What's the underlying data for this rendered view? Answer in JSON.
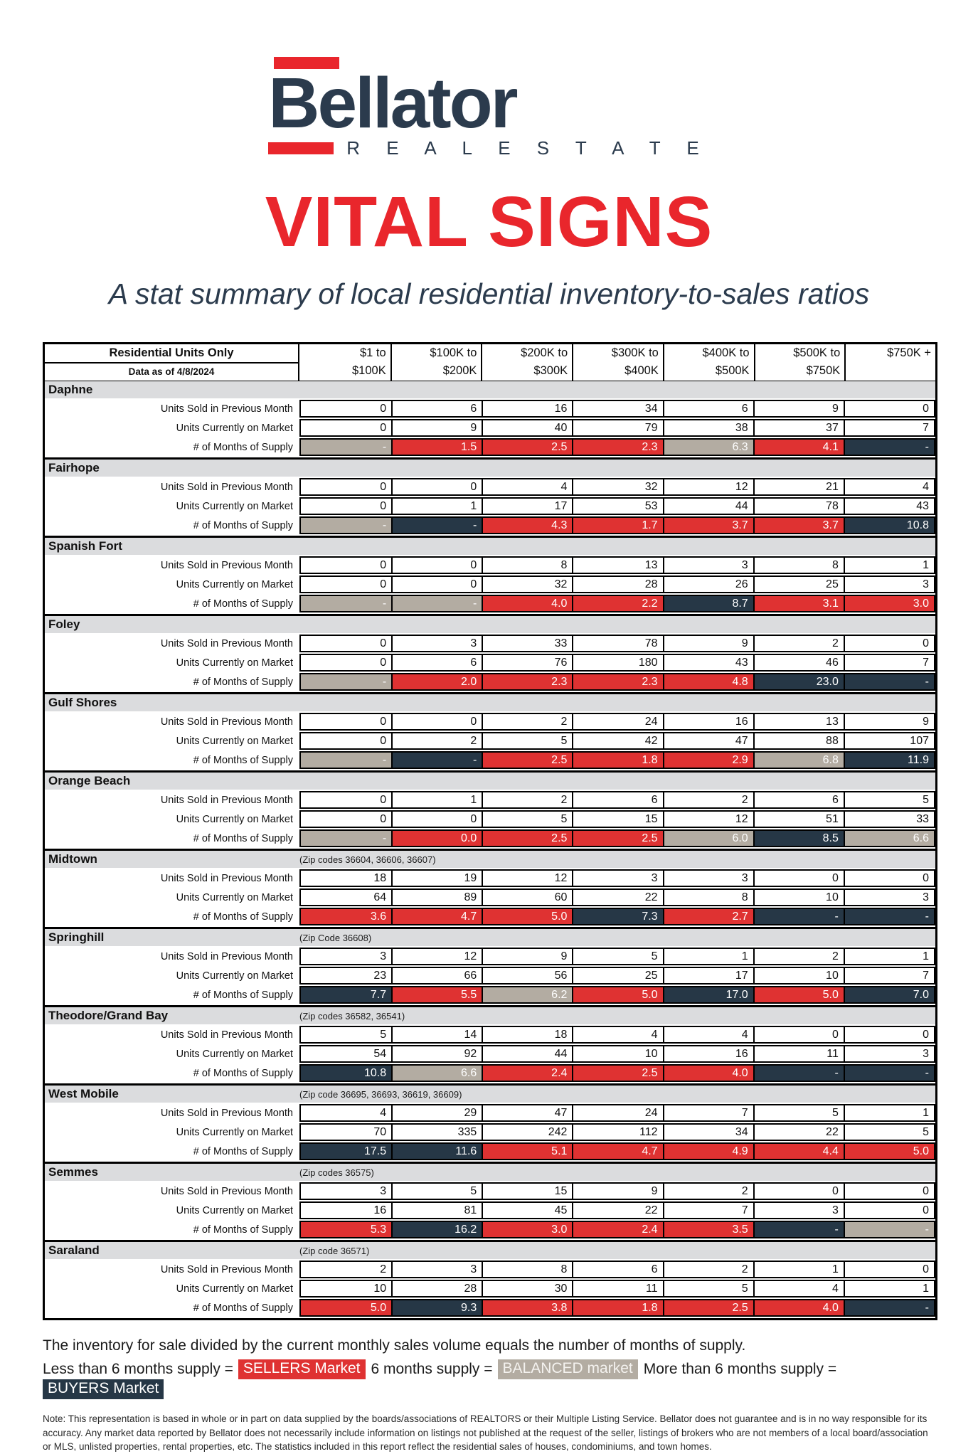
{
  "logo": {
    "brand": "Bellator",
    "tagline": "R E A L   E S T A T E"
  },
  "title": "VITAL SIGNS",
  "subtitle": "A stat summary of local residential inventory-to-sales ratios",
  "colors": {
    "sellers_red": "#DF3232",
    "balanced_gray": "#B3ACA2",
    "buyers_navy": "#263746",
    "title_red": "#E9262C",
    "brand_navy": "#2B3B4D",
    "section_band_gray": "#DBDCDE"
  },
  "table": {
    "corner_title": "Residential Units Only",
    "corner_subtitle": "Data as of 4/8/2024",
    "columns": [
      {
        "line1": "$1 to",
        "line2": "$100K"
      },
      {
        "line1": "$100K to",
        "line2": "$200K"
      },
      {
        "line1": "$200K to",
        "line2": "$300K"
      },
      {
        "line1": "$300K to",
        "line2": "$400K"
      },
      {
        "line1": "$400K to",
        "line2": "$500K"
      },
      {
        "line1": "$500K to",
        "line2": "$750K"
      },
      {
        "line1": "$750K +",
        "line2": ""
      }
    ],
    "row_labels": {
      "sold": "Units Sold in Previous Month",
      "market": "Units Currently on Market",
      "supply": "# of Months of Supply"
    },
    "sections": [
      {
        "name": "Daphne",
        "zip_note": "",
        "sold": [
          "0",
          "6",
          "16",
          "34",
          "6",
          "9",
          "0"
        ],
        "market": [
          "0",
          "9",
          "40",
          "79",
          "38",
          "37",
          "7"
        ],
        "supply": [
          {
            "v": "-",
            "s": "balanced"
          },
          {
            "v": "1.5",
            "s": "sellers"
          },
          {
            "v": "2.5",
            "s": "sellers"
          },
          {
            "v": "2.3",
            "s": "sellers"
          },
          {
            "v": "6.3",
            "s": "balanced"
          },
          {
            "v": "4.1",
            "s": "sellers"
          },
          {
            "v": "-",
            "s": "buyers"
          }
        ]
      },
      {
        "name": "Fairhope",
        "zip_note": "",
        "sold": [
          "0",
          "0",
          "4",
          "32",
          "12",
          "21",
          "4"
        ],
        "market": [
          "0",
          "1",
          "17",
          "53",
          "44",
          "78",
          "43"
        ],
        "supply": [
          {
            "v": "-",
            "s": "balanced"
          },
          {
            "v": "-",
            "s": "buyers"
          },
          {
            "v": "4.3",
            "s": "sellers"
          },
          {
            "v": "1.7",
            "s": "sellers"
          },
          {
            "v": "3.7",
            "s": "sellers"
          },
          {
            "v": "3.7",
            "s": "sellers"
          },
          {
            "v": "10.8",
            "s": "buyers"
          }
        ]
      },
      {
        "name": "Spanish Fort",
        "zip_note": "",
        "sold": [
          "0",
          "0",
          "8",
          "13",
          "3",
          "8",
          "1"
        ],
        "market": [
          "0",
          "0",
          "32",
          "28",
          "26",
          "25",
          "3"
        ],
        "supply": [
          {
            "v": "-",
            "s": "balanced"
          },
          {
            "v": "-",
            "s": "balanced"
          },
          {
            "v": "4.0",
            "s": "sellers"
          },
          {
            "v": "2.2",
            "s": "sellers"
          },
          {
            "v": "8.7",
            "s": "buyers"
          },
          {
            "v": "3.1",
            "s": "sellers"
          },
          {
            "v": "3.0",
            "s": "sellers"
          }
        ]
      },
      {
        "name": "Foley",
        "zip_note": "",
        "sold": [
          "0",
          "3",
          "33",
          "78",
          "9",
          "2",
          "0"
        ],
        "market": [
          "0",
          "6",
          "76",
          "180",
          "43",
          "46",
          "7"
        ],
        "supply": [
          {
            "v": "-",
            "s": "balanced"
          },
          {
            "v": "2.0",
            "s": "sellers"
          },
          {
            "v": "2.3",
            "s": "sellers"
          },
          {
            "v": "2.3",
            "s": "sellers"
          },
          {
            "v": "4.8",
            "s": "sellers"
          },
          {
            "v": "23.0",
            "s": "buyers"
          },
          {
            "v": "-",
            "s": "buyers"
          }
        ]
      },
      {
        "name": "Gulf Shores",
        "zip_note": "",
        "sold": [
          "0",
          "0",
          "2",
          "24",
          "16",
          "13",
          "9"
        ],
        "market": [
          "0",
          "2",
          "5",
          "42",
          "47",
          "88",
          "107"
        ],
        "supply": [
          {
            "v": "-",
            "s": "balanced"
          },
          {
            "v": "-",
            "s": "buyers"
          },
          {
            "v": "2.5",
            "s": "sellers"
          },
          {
            "v": "1.8",
            "s": "sellers"
          },
          {
            "v": "2.9",
            "s": "sellers"
          },
          {
            "v": "6.8",
            "s": "balanced"
          },
          {
            "v": "11.9",
            "s": "buyers"
          }
        ]
      },
      {
        "name": "Orange Beach",
        "zip_note": "",
        "sold": [
          "0",
          "1",
          "2",
          "6",
          "2",
          "6",
          "5"
        ],
        "market": [
          "0",
          "0",
          "5",
          "15",
          "12",
          "51",
          "33"
        ],
        "supply": [
          {
            "v": "-",
            "s": "balanced"
          },
          {
            "v": "0.0",
            "s": "sellers"
          },
          {
            "v": "2.5",
            "s": "sellers"
          },
          {
            "v": "2.5",
            "s": "sellers"
          },
          {
            "v": "6.0",
            "s": "balanced"
          },
          {
            "v": "8.5",
            "s": "buyers"
          },
          {
            "v": "6.6",
            "s": "balanced"
          }
        ]
      },
      {
        "name": "Midtown",
        "zip_note": "(Zip codes 36604, 36606, 36607)",
        "sold": [
          "18",
          "19",
          "12",
          "3",
          "3",
          "0",
          "0"
        ],
        "market": [
          "64",
          "89",
          "60",
          "22",
          "8",
          "10",
          "3"
        ],
        "supply": [
          {
            "v": "3.6",
            "s": "sellers"
          },
          {
            "v": "4.7",
            "s": "sellers"
          },
          {
            "v": "5.0",
            "s": "sellers"
          },
          {
            "v": "7.3",
            "s": "buyers"
          },
          {
            "v": "2.7",
            "s": "sellers"
          },
          {
            "v": "-",
            "s": "buyers"
          },
          {
            "v": "-",
            "s": "buyers"
          }
        ]
      },
      {
        "name": "Springhill",
        "zip_note": "(Zip Code 36608)",
        "sold": [
          "3",
          "12",
          "9",
          "5",
          "1",
          "2",
          "1"
        ],
        "market": [
          "23",
          "66",
          "56",
          "25",
          "17",
          "10",
          "7"
        ],
        "supply": [
          {
            "v": "7.7",
            "s": "buyers"
          },
          {
            "v": "5.5",
            "s": "sellers"
          },
          {
            "v": "6.2",
            "s": "balanced"
          },
          {
            "v": "5.0",
            "s": "sellers"
          },
          {
            "v": "17.0",
            "s": "buyers"
          },
          {
            "v": "5.0",
            "s": "sellers"
          },
          {
            "v": "7.0",
            "s": "buyers"
          }
        ]
      },
      {
        "name": "Theodore/Grand Bay",
        "zip_note": "(Zip codes 36582, 36541)",
        "sold": [
          "5",
          "14",
          "18",
          "4",
          "4",
          "0",
          "0"
        ],
        "market": [
          "54",
          "92",
          "44",
          "10",
          "16",
          "11",
          "3"
        ],
        "supply": [
          {
            "v": "10.8",
            "s": "buyers"
          },
          {
            "v": "6.6",
            "s": "balanced"
          },
          {
            "v": "2.4",
            "s": "sellers"
          },
          {
            "v": "2.5",
            "s": "sellers"
          },
          {
            "v": "4.0",
            "s": "sellers"
          },
          {
            "v": "-",
            "s": "buyers"
          },
          {
            "v": "-",
            "s": "buyers"
          }
        ]
      },
      {
        "name": "West Mobile",
        "zip_note": "(Zip code 36695, 36693, 36619, 36609)",
        "sold": [
          "4",
          "29",
          "47",
          "24",
          "7",
          "5",
          "1"
        ],
        "market": [
          "70",
          "335",
          "242",
          "112",
          "34",
          "22",
          "5"
        ],
        "supply": [
          {
            "v": "17.5",
            "s": "buyers"
          },
          {
            "v": "11.6",
            "s": "buyers"
          },
          {
            "v": "5.1",
            "s": "sellers"
          },
          {
            "v": "4.7",
            "s": "sellers"
          },
          {
            "v": "4.9",
            "s": "sellers"
          },
          {
            "v": "4.4",
            "s": "sellers"
          },
          {
            "v": "5.0",
            "s": "sellers"
          }
        ]
      },
      {
        "name": "Semmes",
        "zip_note": "(Zip codes 36575)",
        "sold": [
          "3",
          "5",
          "15",
          "9",
          "2",
          "0",
          "0"
        ],
        "market": [
          "16",
          "81",
          "45",
          "22",
          "7",
          "3",
          "0"
        ],
        "supply": [
          {
            "v": "5.3",
            "s": "sellers"
          },
          {
            "v": "16.2",
            "s": "buyers"
          },
          {
            "v": "3.0",
            "s": "sellers"
          },
          {
            "v": "2.4",
            "s": "sellers"
          },
          {
            "v": "3.5",
            "s": "sellers"
          },
          {
            "v": "-",
            "s": "buyers"
          },
          {
            "v": "-",
            "s": "balanced"
          }
        ]
      },
      {
        "name": "Saraland",
        "zip_note": "(Zip code 36571)",
        "sold": [
          "2",
          "3",
          "8",
          "6",
          "2",
          "1",
          "0"
        ],
        "market": [
          "10",
          "28",
          "30",
          "11",
          "5",
          "4",
          "1"
        ],
        "supply": [
          {
            "v": "5.0",
            "s": "sellers"
          },
          {
            "v": "9.3",
            "s": "buyers"
          },
          {
            "v": "3.8",
            "s": "sellers"
          },
          {
            "v": "1.8",
            "s": "sellers"
          },
          {
            "v": "2.5",
            "s": "sellers"
          },
          {
            "v": "4.0",
            "s": "sellers"
          },
          {
            "v": "-",
            "s": "buyers"
          }
        ]
      }
    ]
  },
  "footer": {
    "supply_explainer": "The inventory for sale divided by the current monthly sales volume equals the number of months of supply.",
    "legend": [
      {
        "text": "Less than 6 months supply =",
        "chip": "SELLERS Market",
        "status": "sellers"
      },
      {
        "text": "6 months supply =",
        "chip": "BALANCED market",
        "status": "balanced"
      },
      {
        "text": "More than 6 months supply =",
        "chip": "BUYERS Market",
        "status": "buyers"
      }
    ],
    "note": "Note: This representation is based in whole or in part on data supplied by the boards/associations of REALTORS or their Multiple Listing Service. Bellator does not guarantee and is in no way responsible for its accuracy. Any market data reported by Bellator does not necessarily include information on listings not published at the request of the seller, listings of brokers who are not members of a local board/association or MLS, unlisted properties, rental properties, etc. The statistics included in this report reflect the residential sales of houses, condominiums, and town homes."
  }
}
